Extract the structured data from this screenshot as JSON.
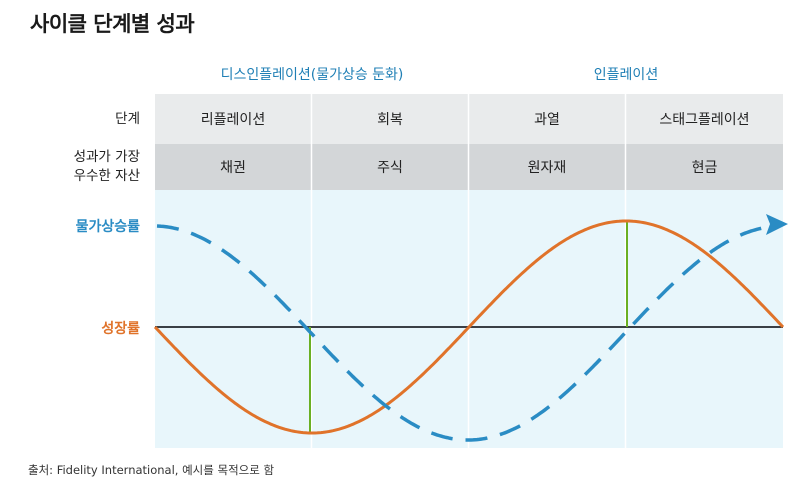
{
  "title": "사이클 단계별 성과",
  "headers": {
    "deflation": "디스인플레이션(물가상승 둔화)",
    "inflation": "인플레이션"
  },
  "rows": {
    "stage_label": "단계",
    "asset_label_1": "성과가 가장",
    "asset_label_2": "우수한 자산"
  },
  "stages": [
    "리플레이션",
    "회복",
    "과열",
    "스태그플레이션"
  ],
  "assets": [
    "채권",
    "주식",
    "원자재",
    "현금"
  ],
  "legend": {
    "inflation": "물가상승률",
    "growth": "성장률"
  },
  "colors": {
    "inflation": "#2a8cc4",
    "growth": "#e0732a",
    "marker": "#6ab023",
    "panel": "#e8f6fb",
    "axis": "#3a3f45"
  },
  "source": "출처: Fidelity International, 예시를 목적으로 함"
}
